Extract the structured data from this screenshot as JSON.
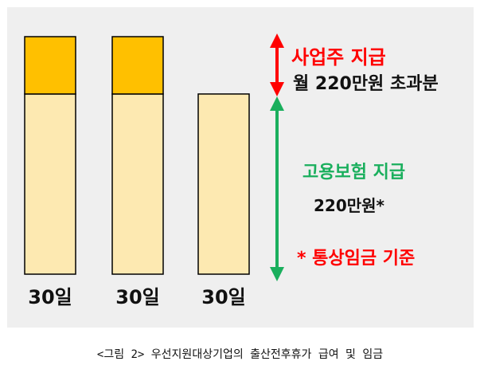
{
  "chart_data": {
    "type": "bar",
    "stacked": true,
    "categories": [
      "30일",
      "30일",
      "30일"
    ],
    "series": [
      {
        "name": "고용보험 지급",
        "values": [
          220,
          220,
          220
        ]
      },
      {
        "name": "사업주 지급",
        "values": [
          70,
          70,
          0
        ]
      }
    ],
    "ylim": [
      0,
      290
    ],
    "grid": false,
    "legend": "none",
    "colors": {
      "base": "#fde9b1",
      "excess": "#ffc000",
      "outline": "#000000",
      "panel": "#efefef",
      "arrow_red": "#ff0000",
      "arrow_green": "#1aaf5d"
    },
    "annotations": {
      "employer_title": "사업주 지급",
      "employer_detail": "월 220만원 초과분",
      "insurance_title": "고용보험 지급",
      "insurance_detail": "220만원*",
      "note": "* 통상임금 기준"
    }
  },
  "caption": "<그림 2> 우선지원대상기업의 출산전후휴가 급여 및 임금"
}
